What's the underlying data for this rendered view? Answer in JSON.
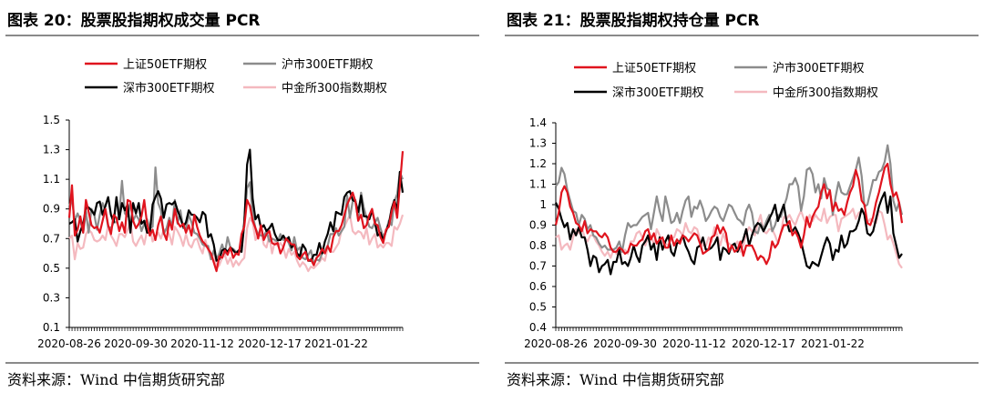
{
  "charts": [
    {
      "title": "图表 20：股票股指期权成交量 PCR",
      "source": "资料来源：Wind 中信期货研究部"
    },
    {
      "title": "图表 21：股票股指期权持仓量 PCR",
      "source": "资料来源：Wind 中信期货研究部"
    }
  ],
  "chart_data": [
    {
      "type": "line",
      "title": "图表 20：股票股指期权成交量 PCR",
      "ylim": [
        0.1,
        1.5
      ],
      "yticks": [
        "0.1",
        "0.3",
        "0.5",
        "0.7",
        "0.9",
        "1.1",
        "1.3",
        "1.5"
      ],
      "xticks": [
        "2020-08-26",
        "2020-09-30",
        "2020-11-12",
        "2020-12-17",
        "2021-01-22"
      ],
      "legend": "top",
      "series": [
        {
          "name": "上证50ETF期权",
          "color": "#e0141e",
          "values": [
            0.84,
            1.06,
            0.72,
            0.76,
            0.85,
            0.74,
            0.96,
            0.88,
            0.79,
            0.77,
            0.78,
            0.74,
            0.82,
            0.9,
            0.79,
            0.73,
            0.86,
            0.84,
            0.75,
            0.81,
            0.74,
            0.96,
            0.95,
            0.82,
            0.77,
            0.8,
            0.85,
            0.96,
            0.8,
            0.72,
            0.76,
            0.69,
            0.79,
            0.85,
            0.74,
            0.69,
            0.82,
            0.76,
            0.9,
            0.81,
            0.78,
            0.8,
            0.74,
            0.79,
            0.72,
            0.86,
            0.78,
            0.72,
            0.68,
            0.66,
            0.63,
            0.6,
            0.54,
            0.48,
            0.58,
            0.57,
            0.62,
            0.59,
            0.64,
            0.57,
            0.6,
            0.59,
            0.73,
            0.78,
            0.96,
            0.92,
            0.82,
            0.77,
            0.7,
            0.79,
            0.69,
            0.73,
            0.75,
            0.67,
            0.66,
            0.67,
            0.6,
            0.64,
            0.7,
            0.68,
            0.66,
            0.66,
            0.58,
            0.56,
            0.59,
            0.61,
            0.55,
            0.56,
            0.52,
            0.57,
            0.59,
            0.63,
            0.6,
            0.65,
            0.61,
            0.71,
            0.75,
            0.75,
            0.79,
            0.86,
            0.93,
            0.97,
            1.01,
            0.95,
            0.82,
            0.86,
            0.77,
            0.79,
            0.86,
            0.9,
            0.8,
            0.79,
            0.71,
            0.67,
            0.76,
            0.78,
            0.88,
            0.95,
            0.84,
            1.06,
            1.29
          ]
        },
        {
          "name": "沪市300ETF期权",
          "color": "#8c8c8c",
          "values": [
            0.92,
            0.96,
            0.82,
            0.87,
            0.82,
            0.74,
            0.88,
            0.74,
            0.9,
            0.86,
            0.76,
            0.86,
            0.94,
            0.89,
            0.78,
            0.77,
            0.81,
            0.81,
            0.86,
            1.09,
            0.87,
            0.85,
            0.94,
            0.82,
            0.86,
            0.83,
            0.75,
            0.8,
            0.83,
            0.77,
            0.78,
            1.18,
            0.94,
            0.89,
            0.73,
            0.77,
            0.84,
            0.78,
            0.96,
            0.8,
            0.89,
            0.77,
            0.77,
            0.86,
            0.81,
            0.74,
            0.73,
            0.7,
            0.66,
            0.65,
            0.65,
            0.56,
            0.62,
            0.56,
            0.6,
            0.66,
            0.6,
            0.71,
            0.64,
            0.63,
            0.61,
            0.61,
            0.66,
            0.82,
            1.04,
            1.08,
            0.86,
            0.77,
            0.73,
            0.72,
            0.72,
            0.75,
            0.68,
            0.7,
            0.69,
            0.68,
            0.73,
            0.69,
            0.7,
            0.67,
            0.62,
            0.71,
            0.62,
            0.64,
            0.57,
            0.56,
            0.59,
            0.62,
            0.53,
            0.56,
            0.55,
            0.6,
            0.62,
            0.65,
            0.73,
            0.73,
            0.77,
            0.72,
            0.75,
            0.78,
            0.99,
            0.84,
            0.95,
            0.96,
            0.82,
            1.01,
            0.91,
            0.84,
            0.78,
            0.77,
            0.81,
            0.84,
            0.77,
            0.71,
            0.75,
            0.82,
            0.79,
            0.95,
            1.0,
            1.15,
            1.1
          ]
        },
        {
          "name": "深市300ETF期权",
          "color": "#000000",
          "values": [
            0.8,
            0.81,
            0.83,
            0.68,
            0.75,
            0.8,
            0.91,
            0.91,
            0.89,
            0.86,
            0.94,
            0.95,
            0.86,
            0.92,
            0.98,
            0.86,
            0.81,
            0.98,
            0.83,
            0.94,
            0.89,
            0.93,
            0.74,
            0.94,
            0.87,
            0.94,
            0.8,
            0.82,
            0.74,
            0.74,
            0.93,
            0.98,
            1.02,
            0.97,
            0.84,
            0.93,
            0.94,
            0.93,
            0.95,
            0.89,
            0.84,
            0.78,
            0.81,
            0.89,
            0.86,
            0.86,
            0.84,
            0.81,
            0.88,
            0.86,
            0.71,
            0.73,
            0.66,
            0.55,
            0.56,
            0.62,
            0.63,
            0.61,
            0.64,
            0.62,
            0.6,
            0.62,
            0.61,
            0.8,
            1.2,
            1.3,
            0.97,
            0.83,
            0.86,
            0.77,
            0.79,
            0.75,
            0.77,
            0.8,
            0.73,
            0.69,
            0.69,
            0.72,
            0.69,
            0.71,
            0.64,
            0.66,
            0.6,
            0.58,
            0.66,
            0.63,
            0.55,
            0.55,
            0.59,
            0.59,
            0.67,
            0.6,
            0.68,
            0.73,
            0.81,
            0.75,
            0.88,
            0.87,
            0.86,
            0.98,
            1.01,
            1.02,
            0.96,
            0.95,
            0.88,
            0.99,
            0.85,
            0.85,
            0.83,
            0.89,
            0.81,
            0.72,
            0.74,
            0.69,
            0.75,
            0.8,
            0.9,
            0.96,
            0.89,
            1.15,
            1.01
          ]
        },
        {
          "name": "中金所300指数期权",
          "color": "#f4b9bf",
          "values": [
            0.7,
            0.72,
            0.56,
            0.67,
            0.63,
            0.64,
            0.73,
            0.76,
            0.74,
            0.69,
            0.68,
            0.69,
            0.72,
            0.69,
            0.79,
            0.72,
            0.69,
            0.65,
            0.73,
            0.73,
            0.71,
            0.76,
            0.81,
            0.68,
            0.65,
            0.69,
            0.72,
            0.66,
            0.75,
            0.78,
            0.68,
            0.71,
            0.74,
            0.7,
            0.76,
            0.76,
            0.73,
            0.66,
            0.78,
            0.75,
            0.71,
            0.65,
            0.73,
            0.66,
            0.64,
            0.69,
            0.7,
            0.64,
            0.6,
            0.69,
            0.62,
            0.57,
            0.61,
            0.5,
            0.52,
            0.57,
            0.59,
            0.53,
            0.57,
            0.51,
            0.55,
            0.52,
            0.55,
            0.57,
            0.77,
            0.84,
            0.81,
            0.69,
            0.72,
            0.75,
            0.66,
            0.64,
            0.72,
            0.6,
            0.68,
            0.65,
            0.67,
            0.64,
            0.57,
            0.63,
            0.59,
            0.61,
            0.55,
            0.51,
            0.54,
            0.52,
            0.48,
            0.51,
            0.5,
            0.52,
            0.54,
            0.57,
            0.55,
            0.64,
            0.61,
            0.61,
            0.64,
            0.67,
            0.76,
            0.78,
            0.82,
            0.86,
            0.75,
            0.73,
            0.75,
            0.74,
            0.7,
            0.77,
            0.66,
            0.7,
            0.73,
            0.64,
            0.66,
            0.64,
            0.67,
            0.67,
            0.65,
            0.78,
            0.76,
            0.8,
            0.86
          ]
        }
      ]
    },
    {
      "type": "line",
      "title": "图表 21：股票股指期权持仓量 PCR",
      "ylim": [
        0.4,
        1.4
      ],
      "yticks": [
        "0.4",
        "0.5",
        "0.6",
        "0.7",
        "0.8",
        "0.9",
        "1",
        "1.1",
        "1.2",
        "1.3",
        "1.4"
      ],
      "xticks": [
        "2020-08-26",
        "2020-09-30",
        "2020-11-12",
        "2020-12-17",
        "2021-01-22"
      ],
      "legend": "top",
      "series": [
        {
          "name": "上证50ETF期权",
          "color": "#e0141e",
          "values": [
            0.9,
            0.96,
            1.06,
            1.09,
            1.06,
            0.99,
            0.96,
            0.91,
            0.9,
            0.87,
            0.92,
            0.86,
            0.88,
            0.87,
            0.87,
            0.85,
            0.84,
            0.86,
            0.84,
            0.79,
            0.77,
            0.77,
            0.79,
            0.78,
            0.76,
            0.77,
            0.81,
            0.8,
            0.8,
            0.82,
            0.83,
            0.87,
            0.88,
            0.83,
            0.86,
            0.81,
            0.83,
            0.84,
            0.79,
            0.79,
            0.85,
            0.8,
            0.83,
            0.81,
            0.85,
            0.84,
            0.82,
            0.84,
            0.86,
            0.85,
            0.81,
            0.76,
            0.77,
            0.78,
            0.84,
            0.85,
            0.9,
            0.86,
            0.89,
            0.86,
            0.77,
            0.8,
            0.77,
            0.78,
            0.82,
            0.75,
            0.8,
            0.8,
            0.8,
            0.77,
            0.73,
            0.75,
            0.74,
            0.71,
            0.74,
            0.82,
            0.79,
            0.81,
            0.86,
            0.9,
            0.9,
            0.92,
            0.85,
            0.87,
            0.84,
            0.79,
            0.85,
            0.94,
            0.89,
            0.94,
            0.97,
            0.99,
            1.06,
            1.1,
            1.03,
            1.07,
            0.97,
            1.01,
            0.97,
            0.98,
            0.95,
            1.01,
            1.06,
            1.09,
            1.17,
            1.12,
            1.02,
            1.0,
            0.91,
            0.9,
            0.94,
            1.01,
            1.06,
            1.12,
            1.18,
            1.2,
            1.1,
            1.04,
            1.06,
            1.01,
            0.91
          ]
        },
        {
          "name": "沪市300ETF期权",
          "color": "#8c8c8c",
          "values": [
            1.09,
            1.11,
            1.18,
            1.15,
            1.07,
            1.02,
            0.97,
            0.96,
            0.9,
            0.95,
            0.93,
            0.88,
            0.9,
            0.85,
            0.84,
            0.81,
            0.79,
            0.8,
            0.78,
            0.78,
            0.78,
            0.79,
            0.82,
            0.77,
            0.85,
            0.91,
            0.89,
            0.9,
            0.9,
            0.92,
            0.94,
            0.95,
            0.96,
            0.88,
            0.96,
            1.04,
            0.97,
            0.92,
            1.04,
            0.98,
            0.91,
            0.92,
            0.96,
            0.91,
            0.97,
            1.02,
            1.04,
            0.94,
            0.99,
            0.98,
            1.02,
            0.98,
            0.92,
            0.94,
            0.97,
            0.99,
            0.98,
            0.94,
            0.92,
            0.96,
            1.0,
            0.99,
            0.96,
            0.93,
            0.92,
            0.9,
            0.97,
            1.0,
            0.96,
            0.87,
            0.86,
            0.91,
            0.88,
            0.92,
            0.95,
            0.87,
            0.9,
            0.95,
            0.94,
            0.99,
            1.03,
            1.1,
            1.1,
            1.13,
            1.09,
            0.97,
            1.04,
            1.17,
            1.18,
            1.15,
            1.06,
            1.1,
            1.03,
            1.13,
            1.08,
            1.07,
            0.95,
            1.04,
            1.11,
            1.06,
            1.05,
            1.05,
            1.09,
            1.13,
            1.17,
            1.23,
            1.14,
            0.99,
            1.0,
            1.06,
            1.12,
            1.12,
            1.16,
            1.17,
            1.21,
            1.29,
            1.2,
            1.02,
            0.97,
            1.01,
            0.95
          ]
        },
        {
          "name": "深市300ETF期权",
          "color": "#000000",
          "values": [
            1.01,
            0.98,
            0.93,
            0.89,
            0.91,
            0.83,
            0.88,
            0.85,
            0.89,
            0.84,
            0.84,
            0.78,
            0.7,
            0.75,
            0.74,
            0.67,
            0.7,
            0.71,
            0.73,
            0.66,
            0.72,
            0.72,
            0.78,
            0.71,
            0.72,
            0.7,
            0.74,
            0.8,
            0.75,
            0.72,
            0.8,
            0.82,
            0.85,
            0.78,
            0.81,
            0.73,
            0.84,
            0.78,
            0.82,
            0.85,
            0.77,
            0.75,
            0.81,
            0.82,
            0.85,
            0.8,
            0.77,
            0.73,
            0.71,
            0.79,
            0.8,
            0.84,
            0.78,
            0.78,
            0.79,
            0.81,
            0.84,
            0.73,
            0.79,
            0.78,
            0.76,
            0.8,
            0.81,
            0.77,
            0.8,
            0.83,
            0.88,
            0.8,
            0.85,
            0.89,
            0.91,
            0.9,
            0.87,
            0.9,
            0.93,
            0.96,
            1.0,
            0.92,
            0.96,
            1.0,
            0.92,
            0.87,
            0.87,
            0.89,
            0.86,
            0.82,
            0.76,
            0.7,
            0.69,
            0.72,
            0.71,
            0.7,
            0.75,
            0.8,
            0.84,
            0.81,
            0.73,
            0.78,
            0.77,
            0.85,
            0.79,
            0.81,
            0.87,
            0.87,
            0.88,
            0.92,
            0.98,
            0.95,
            0.86,
            0.85,
            0.87,
            0.93,
            0.99,
            1.03,
            1.06,
            0.96,
            1.04,
            0.86,
            0.8,
            0.74,
            0.76
          ]
        },
        {
          "name": "中金所300指数期权",
          "color": "#f4b9bf",
          "values": [
            0.84,
            0.85,
            0.78,
            0.8,
            0.81,
            0.78,
            0.84,
            0.88,
            0.86,
            0.89,
            0.84,
            0.82,
            0.85,
            0.85,
            0.82,
            0.8,
            0.77,
            0.75,
            0.77,
            0.74,
            0.78,
            0.76,
            0.79,
            0.77,
            0.78,
            0.76,
            0.82,
            0.82,
            0.86,
            0.87,
            0.84,
            0.8,
            0.84,
            0.85,
            0.8,
            0.88,
            0.85,
            0.81,
            0.81,
            0.8,
            0.84,
            0.84,
            0.88,
            0.87,
            0.85,
            0.91,
            0.87,
            0.86,
            0.89,
            0.88,
            0.83,
            0.8,
            0.8,
            0.84,
            0.82,
            0.89,
            0.85,
            0.8,
            0.86,
            0.82,
            0.81,
            0.8,
            0.8,
            0.82,
            0.77,
            0.8,
            0.86,
            0.89,
            0.87,
            0.85,
            0.91,
            0.95,
            0.87,
            0.86,
            0.88,
            0.88,
            0.85,
            0.81,
            0.86,
            0.94,
            0.93,
            0.95,
            0.92,
            0.9,
            0.94,
            0.97,
            0.93,
            0.9,
            0.95,
            0.92,
            0.95,
            0.93,
            0.92,
            0.98,
            0.91,
            0.94,
            0.95,
            0.95,
            0.87,
            0.93,
            0.94,
            0.95,
            0.96,
            0.98,
            0.93,
            0.96,
            0.97,
            0.96,
            0.91,
            0.93,
            0.92,
            0.91,
            0.97,
            0.96,
            0.9,
            0.83,
            0.85,
            0.81,
            0.76,
            0.71,
            0.69
          ]
        }
      ]
    }
  ]
}
